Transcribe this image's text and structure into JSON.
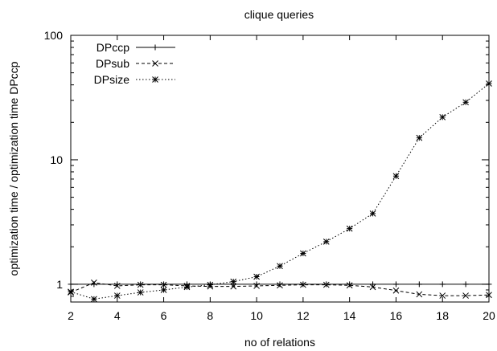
{
  "chart_data": {
    "type": "line",
    "title": "clique queries",
    "xlabel": "no of relations",
    "ylabel": "optimization time / optimization time DPccp",
    "x_ticks": [
      2,
      4,
      6,
      8,
      10,
      12,
      14,
      16,
      18,
      20
    ],
    "y_ticks": [
      1,
      10,
      100
    ],
    "xlim": [
      2,
      20
    ],
    "ylim": [
      0.72,
      100
    ],
    "y_scale": "log",
    "grid": false,
    "legend_position": "top-left",
    "x": [
      2,
      3,
      4,
      5,
      6,
      7,
      8,
      9,
      10,
      11,
      12,
      13,
      14,
      15,
      16,
      17,
      18,
      19,
      20
    ],
    "series": [
      {
        "name": "DPccp",
        "marker": "plus",
        "line": "solid",
        "values": [
          1,
          1,
          1,
          1,
          1,
          1,
          1,
          1,
          1,
          1,
          1,
          1,
          1,
          1,
          1,
          1,
          1,
          1,
          1
        ]
      },
      {
        "name": "DPsub",
        "marker": "x",
        "line": "dashed",
        "values": [
          0.86,
          1.03,
          0.97,
          0.99,
          0.99,
          0.97,
          0.96,
          0.96,
          0.97,
          0.98,
          0.99,
          0.99,
          0.98,
          0.95,
          0.89,
          0.83,
          0.81,
          0.81,
          0.82
        ]
      },
      {
        "name": "DPsize",
        "marker": "star",
        "line": "dotted",
        "values": [
          0.87,
          0.76,
          0.81,
          0.86,
          0.9,
          0.95,
          0.99,
          1.05,
          1.15,
          1.4,
          1.77,
          2.2,
          2.8,
          3.7,
          7.4,
          15,
          22,
          29,
          41
        ]
      }
    ]
  }
}
